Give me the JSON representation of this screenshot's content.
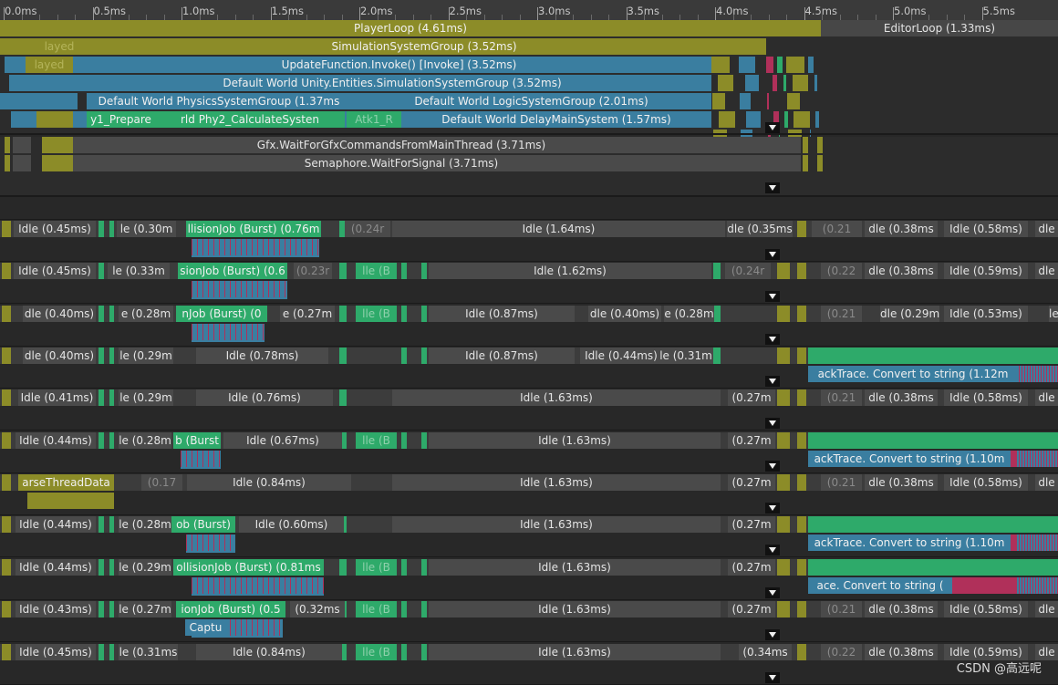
{
  "ruler": {
    "ticks": [
      {
        "value": 0,
        "label": "0.0ms"
      },
      {
        "value": 0.5,
        "label": "0.5ms"
      },
      {
        "value": 1,
        "label": "1.0ms"
      },
      {
        "value": 1.5,
        "label": "1.5ms"
      },
      {
        "value": 2,
        "label": "2.0ms"
      },
      {
        "value": 2.5,
        "label": "2.5ms"
      },
      {
        "value": 3,
        "label": "3.0ms"
      },
      {
        "value": 3.5,
        "label": "3.5ms"
      },
      {
        "value": 4,
        "label": "4.0ms"
      },
      {
        "value": 4.5,
        "label": "4.5ms"
      },
      {
        "value": 5,
        "label": "5.0ms"
      },
      {
        "value": 5.5,
        "label": "5.5ms"
      }
    ]
  },
  "main_thread": {
    "rows": [
      [
        "PlayerLoop (4.61ms)",
        "EditorLoop (1.33ms)"
      ],
      [
        "layed",
        "SimulationSystemGroup (3.52ms)"
      ],
      [
        "layed",
        "UpdateFunction.Invoke() [Invoke] (3.52ms)"
      ],
      [
        "Default World Unity.Entities.SimulationSystemGroup (3.52ms)"
      ],
      [
        "Default World PhysicsSystemGroup (1.37ms",
        "Default World LogicSystemGroup (2.01ms)"
      ],
      [
        "y1_Prepare",
        "rld Phy2_CalculateSysten",
        "Atk1_R",
        "Default World DelayMainSystem (1.57ms)"
      ]
    ]
  },
  "render_thread": {
    "rows": [
      [
        "Gfx.WaitForGfxCommandsFromMainThread (3.71ms)"
      ],
      [
        "Semaphore.WaitForSignal (3.71ms)"
      ]
    ]
  },
  "workers": [
    {
      "top": [
        "Idle (0.45ms)",
        "le (0.30m",
        "llisionJob (Burst) (0.76m",
        "(0.24r",
        "Idle (1.64ms)",
        "dle (0.35ms",
        "(0.21",
        "dle (0.38ms",
        "Idle (0.58ms)",
        "dle"
      ],
      "sub": []
    },
    {
      "top": [
        "Idle (0.45ms)",
        "le (0.33m",
        "sionJob (Burst) (0.6",
        "(0.23r",
        "lle (B",
        "Idle (1.62ms)",
        "(0.24r",
        "(0.22",
        "dle (0.38ms",
        "Idle (0.59ms)",
        "dle"
      ],
      "sub": []
    },
    {
      "top": [
        "dle (0.40ms)",
        "e (0.28m",
        "nJob (Burst) (0",
        "e (0.27m",
        "lle (B",
        "Idle (0.87ms)",
        "dle (0.40ms)",
        "e (0.28m",
        "(0.21",
        "dle (0.29m",
        "Idle (0.53ms)",
        "le"
      ],
      "sub": []
    },
    {
      "top": [
        "dle (0.40ms)",
        "le (0.29m",
        "Idle (0.78ms)",
        "Idle (0.87ms)",
        "Idle (0.44ms)",
        "le (0.31m"
      ],
      "sub": [
        "ackTrace. Convert to string (1.12m"
      ]
    },
    {
      "top": [
        "Idle (0.41ms)",
        "le (0.29m",
        "Idle (0.76ms)",
        "Idle (1.63ms)",
        "(0.27m",
        "(0.21",
        "dle (0.38ms",
        "Idle (0.58ms)",
        "dle"
      ],
      "sub": []
    },
    {
      "top": [
        "Idle (0.44ms)",
        "le (0.28m",
        "b (Burst",
        "Idle (0.67ms)",
        "lle (B",
        "Idle (1.63ms)",
        "(0.27m"
      ],
      "sub": [
        "ackTrace. Convert to string (1.10m"
      ]
    },
    {
      "top": [
        "arseThreadData",
        "(0.17",
        "Idle (0.84ms)",
        "Idle (1.63ms)",
        "(0.27m",
        "(0.21",
        "dle (0.38ms",
        "Idle (0.58ms)",
        "dle"
      ],
      "sub": []
    },
    {
      "top": [
        "Idle (0.44ms)",
        "le (0.28m",
        "ob (Burst)",
        "Idle (0.60ms)",
        "Idle (1.63ms)",
        "(0.27m"
      ],
      "sub": [
        "ackTrace. Convert to string (1.10m"
      ]
    },
    {
      "top": [
        "Idle (0.44ms)",
        "le (0.29m",
        "ollisionJob (Burst) (0.81ms",
        "lle (B",
        "Idle (1.63ms)",
        "(0.27m"
      ],
      "sub": [
        "ace. Convert to string ("
      ]
    },
    {
      "top": [
        "Idle (0.43ms)",
        "le (0.27m",
        "ionJob (Burst) (0.5",
        "(0.32ms",
        "lle (B",
        "Idle (1.63ms)",
        "(0.27m",
        "(0.21",
        "dle (0.38ms",
        "Idle (0.58ms)",
        "dle"
      ],
      "sub": [
        "Captu"
      ]
    },
    {
      "top": [
        "Idle (0.45ms)",
        "le (0.31ms",
        "Idle (0.84ms)",
        "lle (B",
        "Idle (1.63ms)",
        "(0.34ms",
        "(0.22",
        "dle (0.38ms",
        "Idle (0.59ms)",
        "dle"
      ],
      "sub": []
    }
  ],
  "watermark": "CSDN @高远呢"
}
